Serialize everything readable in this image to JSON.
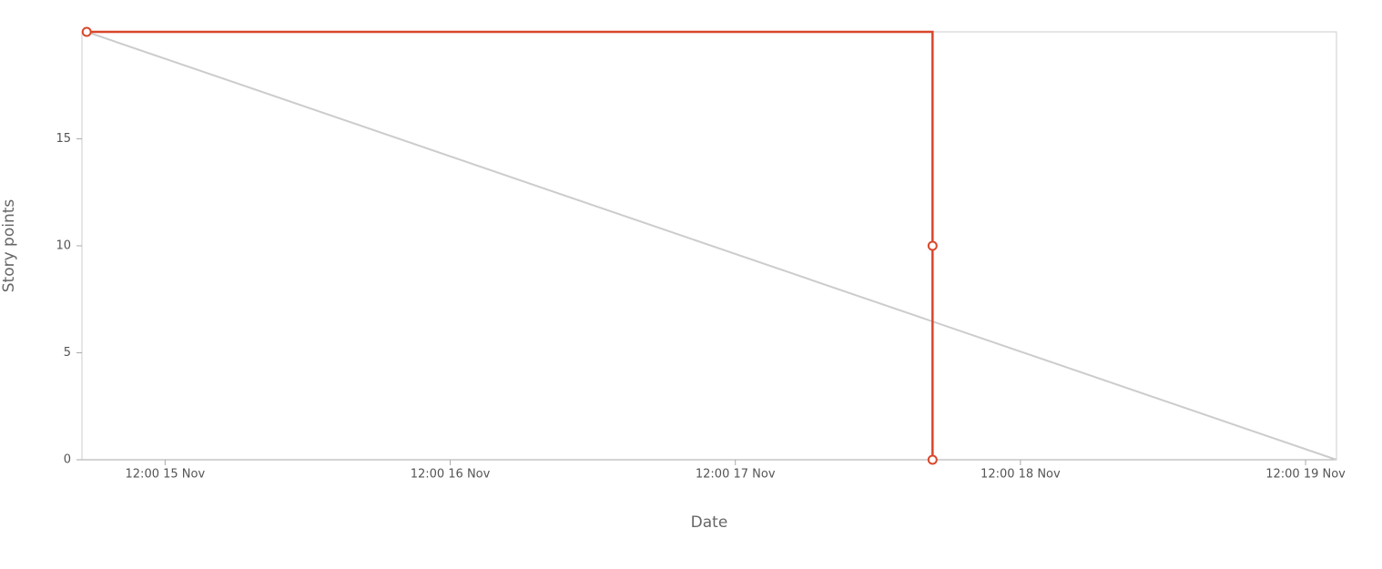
{
  "chart_data": {
    "type": "line",
    "x_label": "Date",
    "y_label": "Story points",
    "xlim": [
      "15 Nov 05:00",
      "19 Nov 14:36"
    ],
    "xticks": [
      {
        "value": "15 Nov 12:00",
        "label": "12:00 15 Nov"
      },
      {
        "value": "16 Nov 12:00",
        "label": "12:00 16 Nov"
      },
      {
        "value": "17 Nov 12:00",
        "label": "12:00 17 Nov"
      },
      {
        "value": "18 Nov 12:00",
        "label": "12:00 18 Nov"
      },
      {
        "value": "19 Nov 12:00",
        "label": "12:00 19 Nov"
      }
    ],
    "ylim": [
      0,
      20
    ],
    "yticks": [
      0,
      5,
      10,
      15
    ],
    "series": [
      {
        "color": "#cccccc",
        "markers": false,
        "step": false,
        "x": [
          "15 Nov 05:24",
          "19 Nov 14:36"
        ],
        "values": [
          20,
          0
        ]
      },
      {
        "color": "#d9472b",
        "markers": true,
        "step": true,
        "x": [
          "15 Nov 05:24",
          "18 Nov 04:36",
          "18 Nov 04:36"
        ],
        "values": [
          20,
          10,
          0
        ]
      }
    ]
  }
}
